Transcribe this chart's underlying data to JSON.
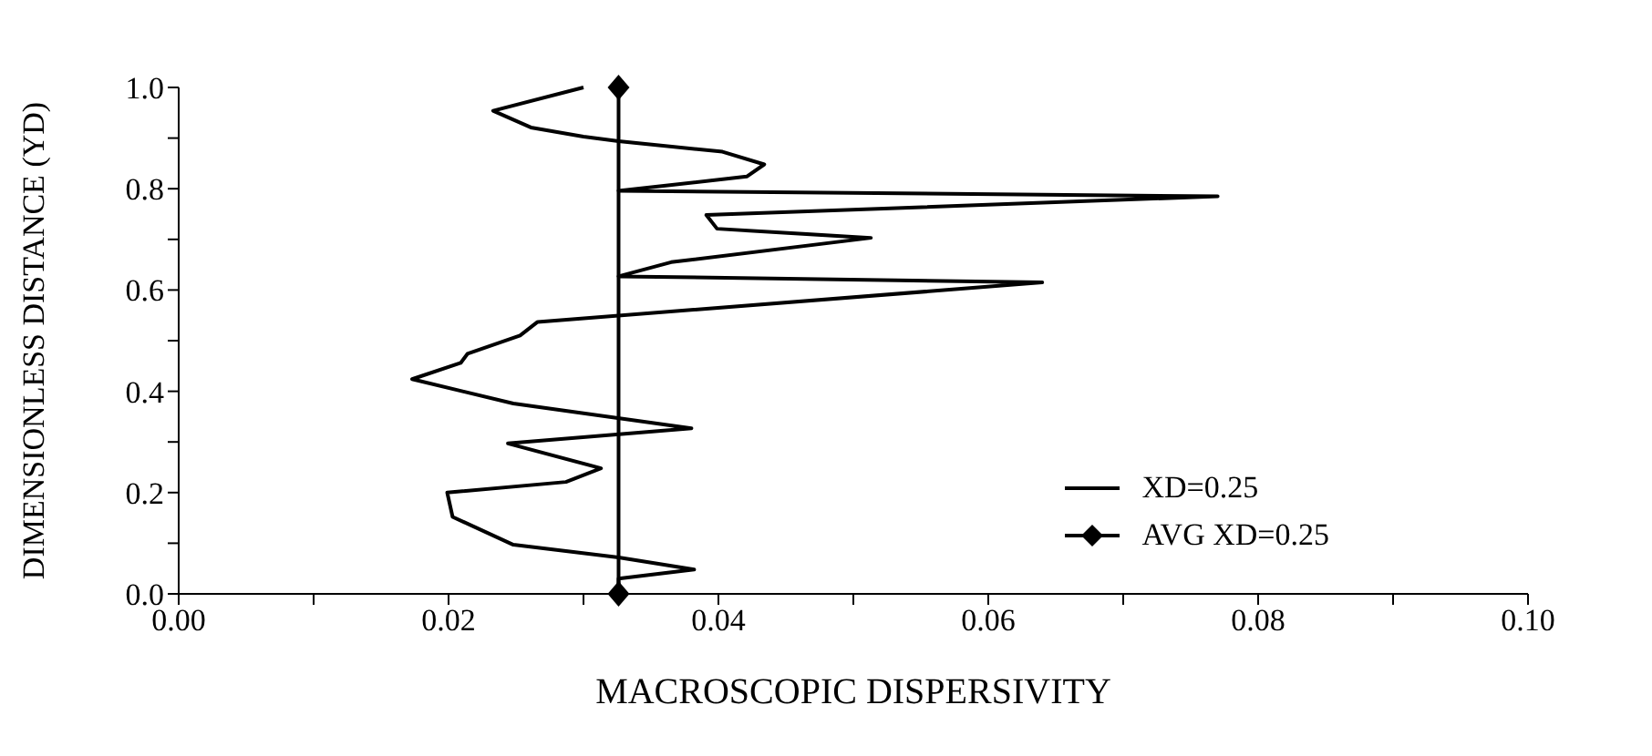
{
  "chart_data": {
    "type": "line",
    "xlabel": "MACROSCOPIC DISPERSIVITY",
    "ylabel": "DIMENSIONLESS DISTANCE (YD)",
    "xlim": [
      0,
      0.1
    ],
    "ylim": [
      0,
      1
    ],
    "xticks": [
      {
        "value": 0,
        "label": "0.00"
      },
      {
        "value": 0.01,
        "label": null
      },
      {
        "value": 0.02,
        "label": "0.02"
      },
      {
        "value": 0.03,
        "label": null
      },
      {
        "value": 0.04,
        "label": "0.04"
      },
      {
        "value": 0.05,
        "label": null
      },
      {
        "value": 0.06,
        "label": "0.06"
      },
      {
        "value": 0.07,
        "label": null
      },
      {
        "value": 0.08,
        "label": "0.08"
      },
      {
        "value": 0.09,
        "label": null
      },
      {
        "value": 0.1,
        "label": "0.10"
      }
    ],
    "yticks": [
      {
        "value": 0,
        "label": "0.0"
      },
      {
        "value": 0.1,
        "label": null
      },
      {
        "value": 0.2,
        "label": "0.2"
      },
      {
        "value": 0.3,
        "label": null
      },
      {
        "value": 0.4,
        "label": "0.4"
      },
      {
        "value": 0.5,
        "label": null
      },
      {
        "value": 0.6,
        "label": "0.6"
      },
      {
        "value": 0.7,
        "label": null
      },
      {
        "value": 0.8,
        "label": "0.8"
      },
      {
        "value": 0.9,
        "label": null
      },
      {
        "value": 1,
        "label": "1.0"
      }
    ],
    "legend": "bottom right",
    "grid": false,
    "series": [
      {
        "name": "XD=0.25",
        "color": "#000000",
        "marker": "none",
        "x": [
          0.03,
          0.0233,
          0.0261,
          0.03,
          0.0326,
          0.0403,
          0.0434,
          0.0421,
          0.0326,
          0.077,
          0.0391,
          0.0399,
          0.0513,
          0.0365,
          0.0326,
          0.064,
          0.0266,
          0.0253,
          0.0214,
          0.0209,
          0.0173,
          0.0248,
          0.038,
          0.0244,
          0.0313,
          0.0287,
          0.0199,
          0.0203,
          0.0248,
          0.0326,
          0.0382,
          0.0326,
          0.0326
        ],
        "values": [
          1.0,
          0.954,
          0.921,
          0.903,
          0.894,
          0.873,
          0.848,
          0.824,
          0.796,
          0.785,
          0.748,
          0.721,
          0.703,
          0.655,
          0.627,
          0.615,
          0.537,
          0.51,
          0.474,
          0.456,
          0.424,
          0.376,
          0.327,
          0.297,
          0.248,
          0.221,
          0.2,
          0.152,
          0.097,
          0.072,
          0.048,
          0.03,
          0.0
        ]
      },
      {
        "name": "AVG XD=0.25",
        "color": "#000000",
        "marker": "diamond",
        "x": [
          0.0326,
          0.0326
        ],
        "values": [
          0,
          1
        ]
      }
    ]
  }
}
